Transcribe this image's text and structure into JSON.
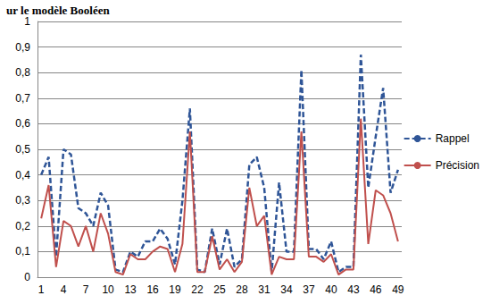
{
  "chart_data": {
    "type": "line",
    "title": "ur le modèle Booléen",
    "categories": [
      "1",
      null,
      null,
      "4",
      null,
      null,
      "7",
      null,
      null,
      "10",
      null,
      null,
      "13",
      null,
      null,
      "16",
      null,
      null,
      "19",
      null,
      null,
      "22",
      null,
      null,
      "25",
      null,
      null,
      "28",
      null,
      null,
      "31",
      null,
      null,
      "34",
      null,
      null,
      "37",
      null,
      null,
      "40",
      null,
      null,
      "43",
      null,
      null,
      "46",
      null,
      null,
      "49"
    ],
    "series": [
      {
        "name": "Rappel",
        "color": "#2f5597",
        "line_style": "dashed",
        "values": [
          0.4,
          0.47,
          0.08,
          0.5,
          0.48,
          0.27,
          0.25,
          0.2,
          0.33,
          0.28,
          0.03,
          0.02,
          0.1,
          0.08,
          0.14,
          0.14,
          0.19,
          0.15,
          0.05,
          0.3,
          0.66,
          0.03,
          0.02,
          0.19,
          0.05,
          0.19,
          0.04,
          0.07,
          0.44,
          0.47,
          0.35,
          0.02,
          0.37,
          0.1,
          0.1,
          0.81,
          0.11,
          0.11,
          0.07,
          0.14,
          0.02,
          0.04,
          0.04,
          0.87,
          0.35,
          0.55,
          0.74,
          0.33,
          0.42
        ]
      },
      {
        "name": "Précision",
        "color": "#c0504d",
        "line_style": "solid",
        "values": [
          0.23,
          0.36,
          0.04,
          0.22,
          0.2,
          0.12,
          0.2,
          0.1,
          0.25,
          0.17,
          0.02,
          0.01,
          0.09,
          0.07,
          0.07,
          0.1,
          0.12,
          0.11,
          0.02,
          0.13,
          0.57,
          0.02,
          0.02,
          0.16,
          0.03,
          0.07,
          0.02,
          0.06,
          0.35,
          0.2,
          0.24,
          0.01,
          0.08,
          0.07,
          0.07,
          0.57,
          0.08,
          0.08,
          0.06,
          0.09,
          0.01,
          0.03,
          0.03,
          0.62,
          0.13,
          0.34,
          0.32,
          0.25,
          0.14
        ]
      }
    ],
    "ylim": [
      0,
      1
    ],
    "yticks": [
      0,
      {
        "value": 0.1,
        "label": "0,1"
      },
      {
        "value": 0.2,
        "label": "0,2"
      },
      {
        "value": 0.3,
        "label": "0,3"
      },
      {
        "value": 0.4,
        "label": "0,4"
      },
      {
        "value": 0.5,
        "label": "0,5"
      },
      {
        "value": 0.6,
        "label": "0,6"
      },
      {
        "value": 0.7,
        "label": "0,7"
      },
      {
        "value": 0.8,
        "label": "0,8"
      },
      {
        "value": 0.9,
        "label": "0,9"
      },
      1
    ],
    "grid": true,
    "legend": "right"
  }
}
